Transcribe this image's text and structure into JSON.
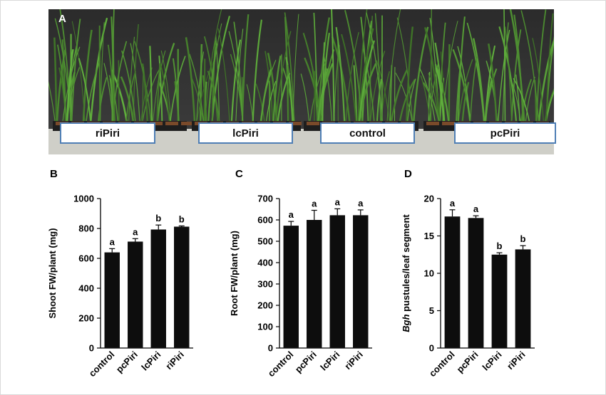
{
  "figure": {
    "photo_panel": {
      "letter": "A",
      "tray_labels": [
        "riPiri",
        "lcPiri",
        "control",
        "pcPiri"
      ]
    }
  },
  "chart_data": [
    {
      "panel": "B",
      "type": "bar",
      "categories": [
        "control",
        "pcPiri",
        "lcPiri",
        "riPiri"
      ],
      "values": [
        640,
        712,
        793,
        812
      ],
      "errors": [
        25,
        20,
        30,
        5
      ],
      "significance": [
        "a",
        "a",
        "b",
        "b"
      ],
      "ylabel": "Shoot FW/plant (mg)",
      "ylabel_italic_prefix": "",
      "ylim": [
        0,
        1000
      ],
      "yticks": [
        0,
        200,
        400,
        600,
        800,
        1000
      ],
      "color": "#0d0d0d"
    },
    {
      "panel": "C",
      "type": "bar",
      "categories": [
        "control",
        "pcPiri",
        "lcPiri",
        "riPiri"
      ],
      "values": [
        573,
        600,
        622,
        622
      ],
      "errors": [
        20,
        45,
        30,
        25
      ],
      "significance": [
        "a",
        "a",
        "a",
        "a"
      ],
      "ylabel": "Root FW/plant (mg)",
      "ylabel_italic_prefix": "",
      "ylim": [
        0,
        700
      ],
      "yticks": [
        0,
        100,
        200,
        300,
        400,
        500,
        600,
        700
      ],
      "color": "#0d0d0d"
    },
    {
      "panel": "D",
      "type": "bar",
      "categories": [
        "control",
        "pcPiri",
        "lcPiri",
        "riPiri"
      ],
      "values": [
        17.6,
        17.4,
        12.5,
        13.2
      ],
      "errors": [
        0.9,
        0.3,
        0.25,
        0.5
      ],
      "significance": [
        "a",
        "a",
        "b",
        "b"
      ],
      "ylabel": " pustules/leaf segment",
      "ylabel_italic_prefix": "Bgh",
      "ylim": [
        0,
        20
      ],
      "yticks": [
        0,
        5,
        10,
        15,
        20
      ],
      "color": "#0d0d0d"
    }
  ]
}
